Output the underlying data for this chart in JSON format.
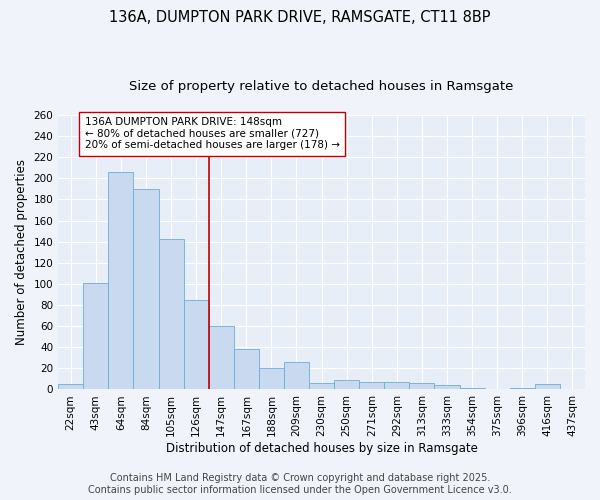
{
  "title": "136A, DUMPTON PARK DRIVE, RAMSGATE, CT11 8BP",
  "subtitle": "Size of property relative to detached houses in Ramsgate",
  "xlabel": "Distribution of detached houses by size in Ramsgate",
  "ylabel": "Number of detached properties",
  "categories": [
    "22sqm",
    "43sqm",
    "64sqm",
    "84sqm",
    "105sqm",
    "126sqm",
    "147sqm",
    "167sqm",
    "188sqm",
    "209sqm",
    "230sqm",
    "250sqm",
    "271sqm",
    "292sqm",
    "313sqm",
    "333sqm",
    "354sqm",
    "375sqm",
    "396sqm",
    "416sqm",
    "437sqm"
  ],
  "values": [
    5,
    101,
    206,
    190,
    143,
    85,
    60,
    38,
    20,
    26,
    6,
    9,
    7,
    7,
    6,
    4,
    1,
    0,
    1,
    5,
    0
  ],
  "bar_color": "#c9d9f0",
  "bar_edge_color": "#6baed6",
  "vline_x_index": 6,
  "vline_color": "#c00000",
  "annotation_line1": "136A DUMPTON PARK DRIVE: 148sqm",
  "annotation_line2": "← 80% of detached houses are smaller (727)",
  "annotation_line3": "20% of semi-detached houses are larger (178) →",
  "annotation_box_color": "#ffffff",
  "annotation_box_edge": "#c00000",
  "ylim": [
    0,
    260
  ],
  "yticks": [
    0,
    20,
    40,
    60,
    80,
    100,
    120,
    140,
    160,
    180,
    200,
    220,
    240,
    260
  ],
  "footer_line1": "Contains HM Land Registry data © Crown copyright and database right 2025.",
  "footer_line2": "Contains public sector information licensed under the Open Government Licence v3.0.",
  "background_color": "#f0f4fa",
  "plot_bg_color": "#e8eef8",
  "grid_color": "#ffffff",
  "title_fontsize": 10.5,
  "subtitle_fontsize": 9.5,
  "axis_label_fontsize": 8.5,
  "tick_fontsize": 7.5,
  "annotation_fontsize": 7.5,
  "footer_fontsize": 7
}
